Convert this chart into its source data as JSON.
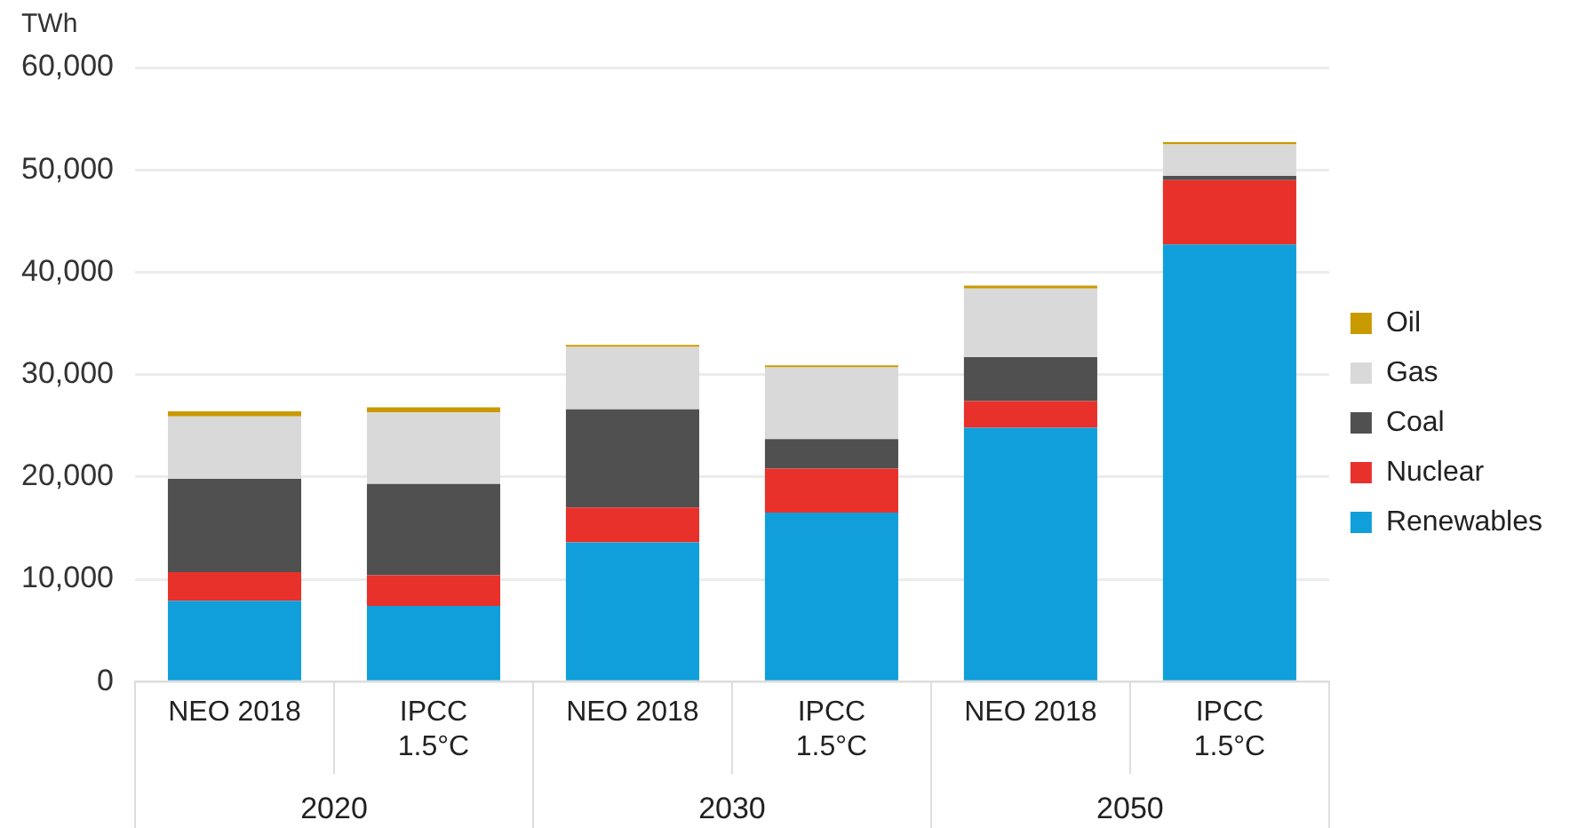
{
  "chart_data": {
    "type": "bar",
    "ylabel": "TWh",
    "stacked": true,
    "categories": [
      "NEO 2018",
      "IPCC 1.5°C",
      "NEO 2018",
      "IPCC 1.5°C",
      "NEO 2018",
      "IPCC 1.5°C"
    ],
    "annotations": [
      "2020",
      "2030",
      "2050"
    ],
    "series": [
      {
        "name": "Renewables",
        "color": "#109fda",
        "values": [
          7900,
          7400,
          13600,
          16500,
          24800,
          42700
        ]
      },
      {
        "name": "Nuclear",
        "color": "#e8312a",
        "values": [
          2800,
          3000,
          3400,
          4300,
          2600,
          6300
        ]
      },
      {
        "name": "Coal",
        "color": "#505050",
        "values": [
          9100,
          8900,
          9600,
          2900,
          4300,
          400
        ]
      },
      {
        "name": "Gas",
        "color": "#d9d9d9",
        "values": [
          6100,
          7000,
          6100,
          7000,
          6700,
          3100
        ]
      },
      {
        "name": "Oil",
        "color": "#c99a00",
        "values": [
          500,
          500,
          200,
          200,
          300,
          200
        ]
      }
    ],
    "ylim": [
      0,
      60000
    ],
    "yticks": [
      0,
      {
        "value": 10000,
        "label": "10,000"
      },
      {
        "value": 20000,
        "label": "20,000"
      },
      {
        "value": 30000,
        "label": "30,000"
      },
      {
        "value": 40000,
        "label": "40,000"
      },
      {
        "value": 50000,
        "label": "50,000"
      },
      {
        "value": 60000,
        "label": "60,000"
      }
    ],
    "grid": "y",
    "legend": "right"
  }
}
